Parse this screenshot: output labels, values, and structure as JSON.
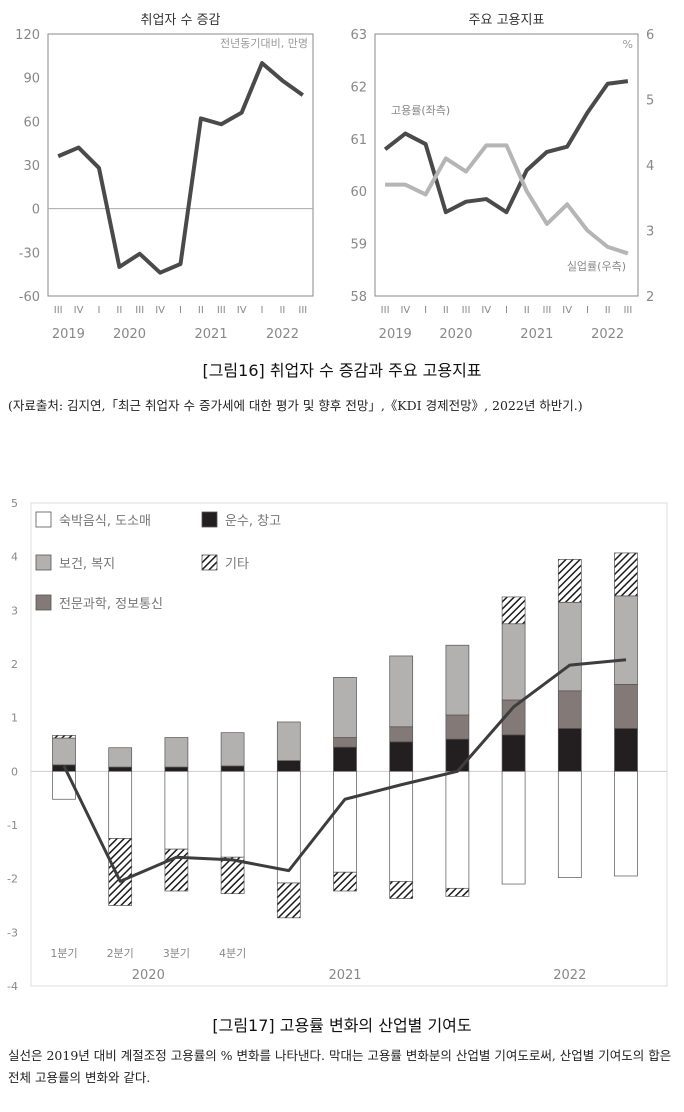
{
  "figure16": {
    "caption": "[그림16] 취업자 수 증감과 주요 고용지표",
    "source": "(자료출처: 김지연,「최근 취업자 수 증가세에 대한 평가 및 향후 전망」,《KDI 경제전망》, 2022년 하반기.)"
  },
  "figure17": {
    "caption": "[그림17] 고용률 변화의 산업별 기여도",
    "note": "실선은 2019년 대비 계절조정 고용률의 % 변화를 나타낸다. 막대는 고용률 변화분의 산업별 기여도로써, 산업별 기여도의 합은 전체 고용률의 변화와 같다."
  },
  "chart_data": [
    {
      "type": "line",
      "title": "취업자 수 증감",
      "annotation": "전년동기대비, 만명",
      "quarters": [
        "III",
        "IV",
        "I",
        "II",
        "III",
        "IV",
        "I",
        "II",
        "III",
        "IV",
        "I",
        "II",
        "III"
      ],
      "years": [
        {
          "label": "2019",
          "at": 0.5
        },
        {
          "label": "2020",
          "at": 3.5
        },
        {
          "label": "2021",
          "at": 7.5
        },
        {
          "label": "2022",
          "at": 11
        }
      ],
      "ylim": [
        -60,
        120
      ],
      "yticks": [
        "120",
        "90",
        "60",
        "30",
        "0",
        "-30",
        "-60"
      ],
      "series": [
        {
          "values": [
            36,
            42,
            28,
            -40,
            -31,
            -44,
            -38,
            62,
            58,
            66,
            100,
            88,
            78
          ]
        }
      ],
      "color": "#4a4a4a"
    },
    {
      "type": "line",
      "title": "주요 고용지표",
      "quarters": [
        "III",
        "IV",
        "I",
        "II",
        "III",
        "IV",
        "I",
        "II",
        "III",
        "IV",
        "I",
        "II",
        "III"
      ],
      "years": [
        {
          "label": "2019",
          "at": 0.5
        },
        {
          "label": "2020",
          "at": 3.5
        },
        {
          "label": "2021",
          "at": 7.5
        },
        {
          "label": "2022",
          "at": 11
        }
      ],
      "ylim_left": [
        58,
        63
      ],
      "yticks_left": [
        "63",
        "62",
        "61",
        "60",
        "59",
        "58"
      ],
      "ylim_right": [
        2,
        6
      ],
      "yticks_right": [
        "6",
        "5",
        "4",
        "3",
        "2"
      ],
      "right_unit": "%",
      "series": [
        {
          "name": "고용률(좌측)",
          "axis": "left",
          "values": [
            60.8,
            61.1,
            60.9,
            59.6,
            59.8,
            59.85,
            59.6,
            60.4,
            60.75,
            60.85,
            61.5,
            62.05,
            62.1
          ],
          "color": "#4a4a4a"
        },
        {
          "name": "실업률(우측)",
          "axis": "right",
          "values": [
            3.7,
            3.7,
            3.55,
            4.1,
            3.9,
            4.3,
            4.3,
            3.6,
            3.1,
            3.4,
            3.0,
            2.75,
            2.65
          ],
          "color": "#b5b5b5"
        }
      ]
    },
    {
      "type": "bar",
      "stacked": true,
      "ylim": [
        -4,
        5
      ],
      "yticks": [
        "5",
        "4",
        "3",
        "2",
        "1",
        "0",
        "-1",
        "-2",
        "-3",
        "-4"
      ],
      "categories": [
        "1분기",
        "2분기",
        "3분기",
        "4분기",
        "",
        "",
        "",
        "",
        "",
        "",
        ""
      ],
      "year_labels": [
        {
          "label": "2020",
          "at": 1.5
        },
        {
          "label": "2021",
          "at": 5
        },
        {
          "label": "2022",
          "at": 9
        }
      ],
      "series": [
        {
          "name": "숙박음식, 도소매",
          "fill": "#ffffff",
          "values": [
            -0.52,
            -1.25,
            -1.45,
            -1.6,
            -2.08,
            -1.88,
            -2.05,
            -2.18,
            -2.1,
            -1.98,
            -1.95
          ]
        },
        {
          "name": "운수, 창고",
          "fill": "#231f20",
          "values": [
            0.12,
            0.08,
            0.08,
            0.1,
            0.2,
            0.45,
            0.55,
            0.6,
            0.68,
            0.8,
            0.8
          ]
        },
        {
          "name": "보건, 복지",
          "fill": "#b3b0b0",
          "values": [
            0.5,
            0.36,
            0.55,
            0.62,
            0.72,
            1.12,
            1.32,
            1.3,
            1.42,
            1.65,
            1.65
          ]
        },
        {
          "name": "전문과학, 정보통신",
          "fill": "#837976",
          "values": [
            0.0,
            0.0,
            0.0,
            0.0,
            0.0,
            0.18,
            0.28,
            0.45,
            0.65,
            0.7,
            0.82
          ]
        },
        {
          "name": "기타",
          "fill": "hatch",
          "values": [
            0.05,
            -1.25,
            -0.78,
            -0.68,
            -0.65,
            -0.35,
            -0.32,
            -0.15,
            0.5,
            0.8,
            0.8
          ]
        }
      ],
      "line": {
        "values": [
          0.1,
          -2.05,
          -1.6,
          -1.65,
          -1.85,
          -0.52,
          -0.25,
          0.0,
          1.2,
          1.98,
          2.08
        ],
        "color": "#3d3d3d"
      }
    }
  ]
}
